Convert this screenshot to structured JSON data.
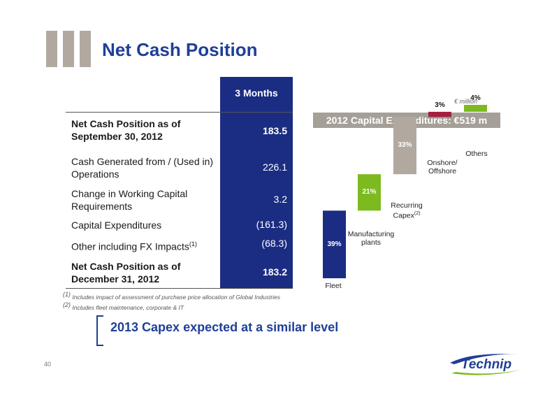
{
  "page": {
    "title": "Net Cash Position",
    "page_number": "40",
    "footnote_1": "Includes impact of assessment of purchase price allocation of Global Industries",
    "footnote_2": "Includes fleet maintenance, corporate & IT",
    "bottom_note": "2013 Capex expected at a similar level",
    "logo_text": "Technip"
  },
  "table": {
    "header": "3 Months",
    "rows": [
      {
        "label": "Net Cash Position as of September 30, 2012",
        "value": "183.5",
        "bold": true
      },
      {
        "label": "Cash Generated from / (Used in) Operations",
        "value": "226.1",
        "bold": false
      },
      {
        "label": "Change in Working Capital Requirements",
        "value": "3.2",
        "bold": false
      },
      {
        "label": "Capital Expenditures",
        "value": "(161.3)",
        "bold": false
      },
      {
        "label": "Other including FX Impacts",
        "label_sup": "(1)",
        "value": "(68.3)",
        "bold": false
      },
      {
        "label": "Net Cash Position as of December 31, 2012",
        "value": "183.2",
        "bold": true
      }
    ]
  },
  "chart_data": {
    "type": "bar",
    "subtype": "waterfall",
    "title": "2012 Capital Expenditures: €519 m",
    "unit": "€ million",
    "categories": [
      "Fleet",
      "Manufacturing plants",
      "Recurring Capex",
      "Onshore/ Offshore",
      "Others"
    ],
    "category_sup": [
      "",
      "",
      "(2)",
      "",
      ""
    ],
    "values": [
      39,
      21,
      33,
      3,
      4
    ],
    "value_labels": [
      "39%",
      "21%",
      "33%",
      "3%",
      "4%"
    ],
    "colors": [
      "#1b2d83",
      "#7dba1f",
      "#b1a9a0",
      "#a3213f",
      "#7dba1f"
    ],
    "label_colors": [
      "#ffffff",
      "#ffffff",
      "#ffffff",
      "#1a1a1a",
      "#1a1a1a"
    ],
    "ylim": [
      0,
      100
    ]
  }
}
